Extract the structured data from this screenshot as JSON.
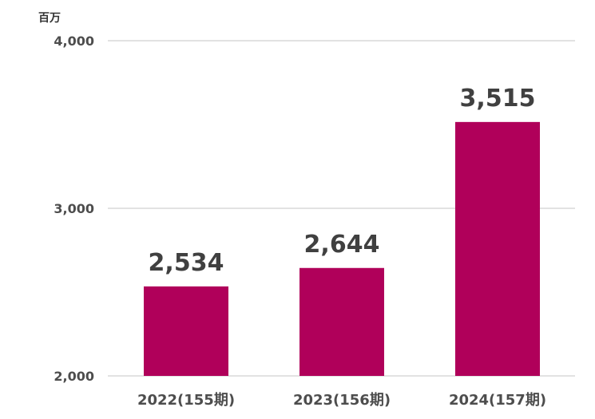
{
  "colors": {
    "bar": "#B0005A",
    "grid": "#D0D0D0",
    "text": "#404040"
  },
  "chart_data": {
    "type": "bar",
    "unit_label": "百万",
    "categories": [
      "2022(155期)",
      "2023(156期)",
      "2024(157期)"
    ],
    "values": [
      2534,
      2644,
      3515
    ],
    "value_labels": [
      "2,534",
      "2,644",
      "3,515"
    ],
    "ylim": [
      2000,
      4000
    ],
    "yticks": [
      2000,
      3000,
      4000
    ],
    "ytick_labels": [
      "2,000",
      "3,000",
      "4,000"
    ],
    "grid": true,
    "legend": "none",
    "title": "",
    "xlabel": "",
    "ylabel": ""
  }
}
